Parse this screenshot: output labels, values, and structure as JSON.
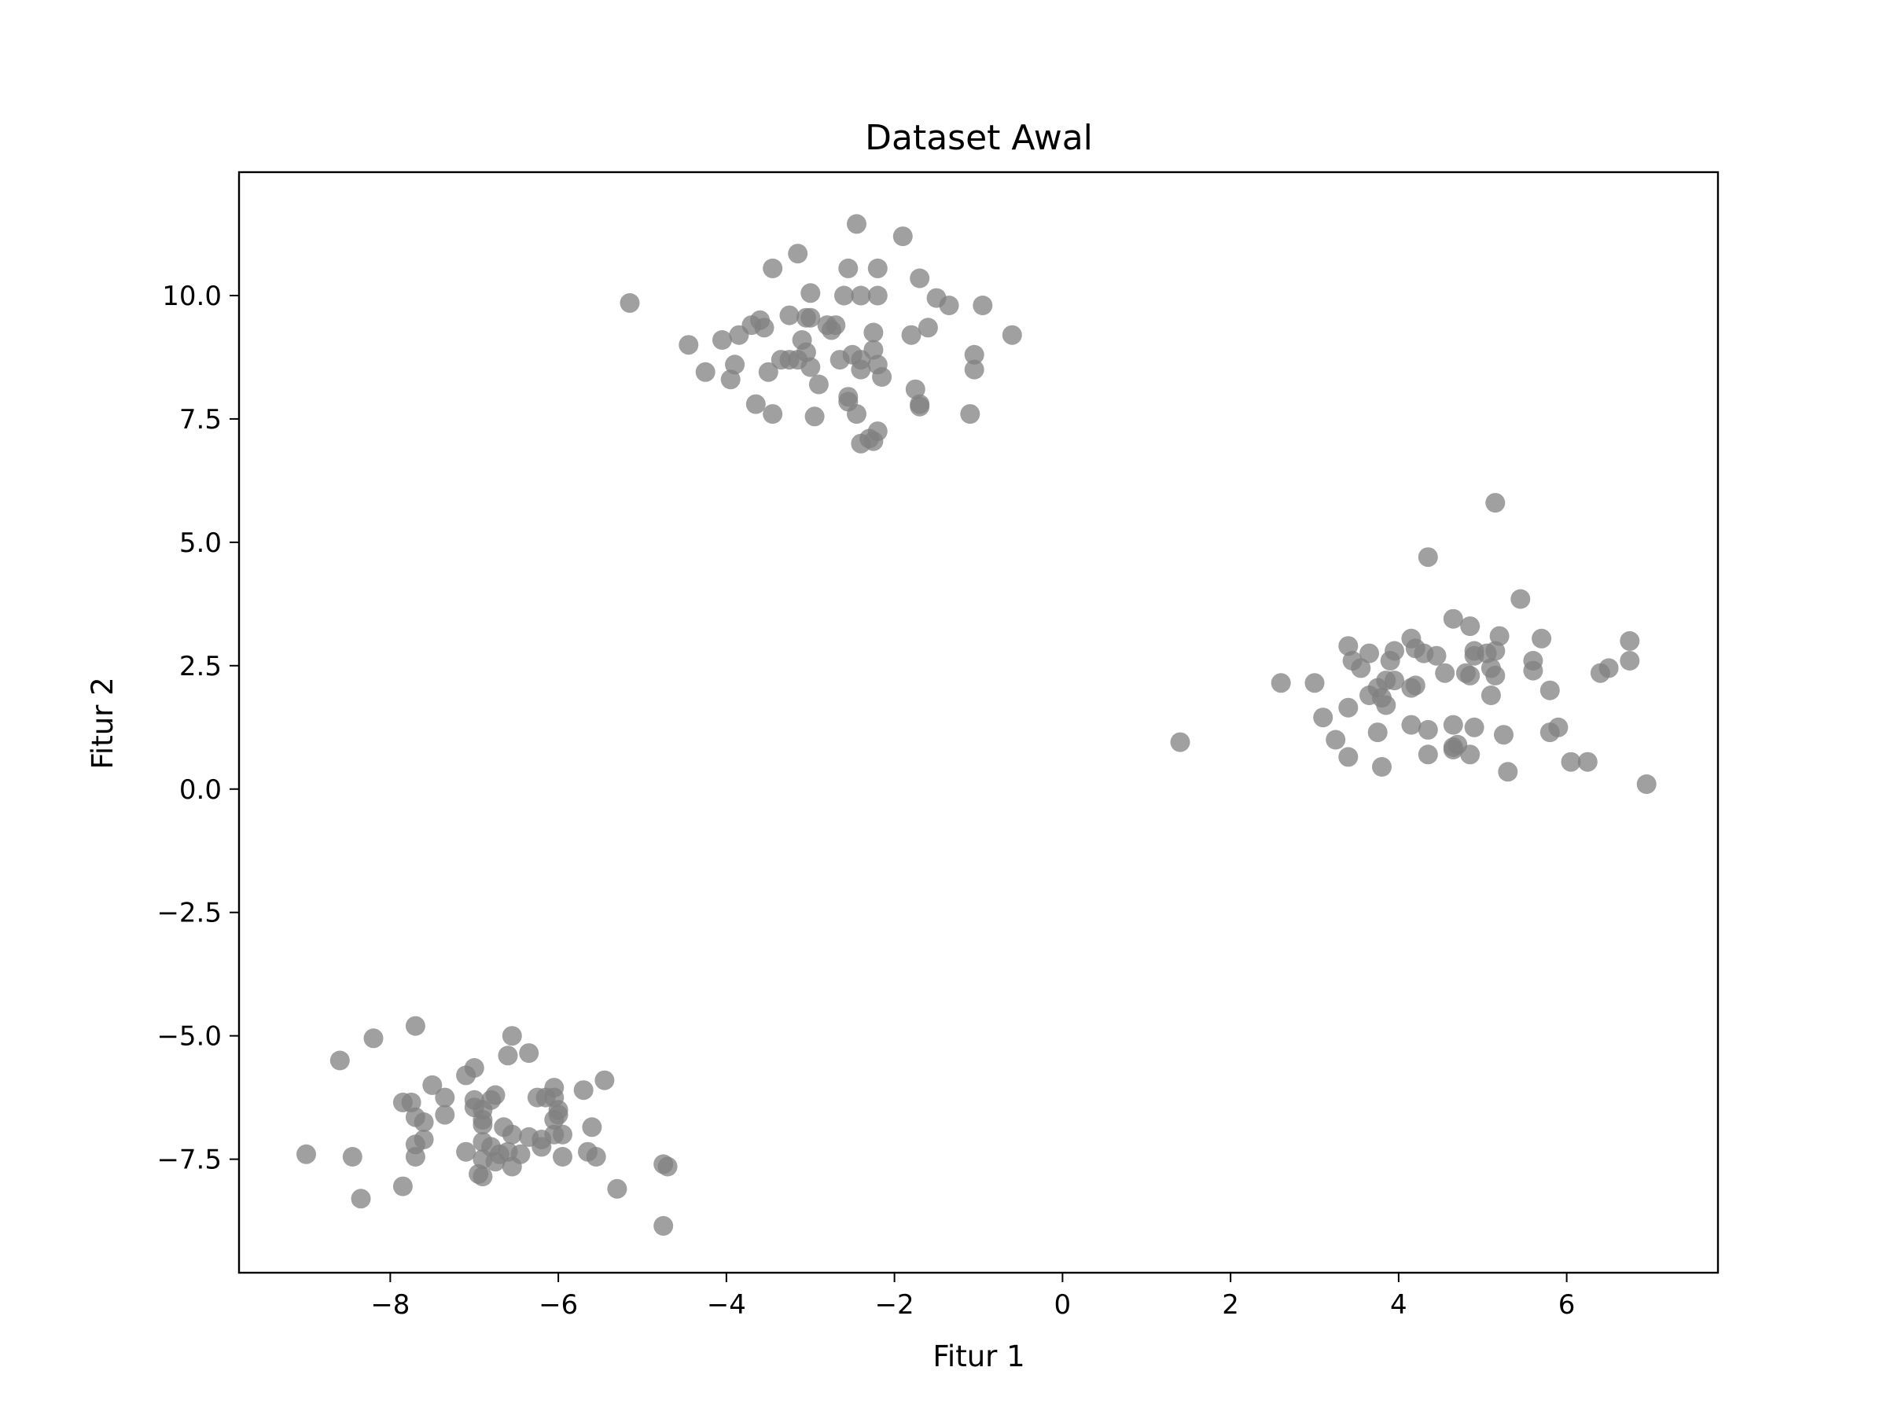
{
  "chart_data": {
    "type": "scatter",
    "title": "Dataset Awal",
    "xlabel": "Fitur 1",
    "ylabel": "Fitur 2",
    "xlim": [
      -9.8,
      7.8
    ],
    "ylim": [
      -9.8,
      12.5
    ],
    "xticks": [
      -8,
      -6,
      -4,
      -2,
      0,
      2,
      4,
      6
    ],
    "xtick_labels": [
      "−8",
      "−6",
      "−4",
      "−2",
      "0",
      "2",
      "4",
      "6"
    ],
    "yticks": [
      -7.5,
      -5.0,
      -2.5,
      0.0,
      2.5,
      5.0,
      7.5,
      10.0
    ],
    "ytick_labels": [
      "−7.5",
      "−5.0",
      "−2.5",
      "0.0",
      "2.5",
      "5.0",
      "7.5",
      "10.0"
    ],
    "grid": false,
    "legend": "none",
    "marker_color": "#808080",
    "marker_alpha": 0.75,
    "series": [
      {
        "points": [
          [
            -2.45,
            11.45
          ],
          [
            -1.9,
            11.2
          ],
          [
            -3.15,
            10.85
          ],
          [
            -3.45,
            10.55
          ],
          [
            -2.55,
            10.55
          ],
          [
            -2.2,
            10.55
          ],
          [
            -1.7,
            10.35
          ],
          [
            -3.0,
            10.05
          ],
          [
            -2.6,
            10.0
          ],
          [
            -2.4,
            10.0
          ],
          [
            -2.2,
            10.0
          ],
          [
            -1.5,
            9.95
          ],
          [
            -1.35,
            9.8
          ],
          [
            -0.95,
            9.8
          ],
          [
            -5.15,
            9.85
          ],
          [
            -3.25,
            9.6
          ],
          [
            -3.6,
            9.5
          ],
          [
            -3.7,
            9.4
          ],
          [
            -3.55,
            9.35
          ],
          [
            -3.05,
            9.55
          ],
          [
            -3.0,
            9.55
          ],
          [
            -2.8,
            9.4
          ],
          [
            -2.75,
            9.3
          ],
          [
            -2.7,
            9.4
          ],
          [
            -2.25,
            9.25
          ],
          [
            -1.8,
            9.2
          ],
          [
            -1.6,
            9.35
          ],
          [
            -0.6,
            9.2
          ],
          [
            -3.85,
            9.2
          ],
          [
            -4.05,
            9.1
          ],
          [
            -4.45,
            9.0
          ],
          [
            -3.1,
            9.1
          ],
          [
            -2.25,
            8.9
          ],
          [
            -3.05,
            8.85
          ],
          [
            -2.5,
            8.8
          ],
          [
            -2.4,
            8.7
          ],
          [
            -2.65,
            8.7
          ],
          [
            -1.05,
            8.8
          ],
          [
            -3.35,
            8.7
          ],
          [
            -3.25,
            8.7
          ],
          [
            -3.15,
            8.7
          ],
          [
            -3.0,
            8.55
          ],
          [
            -3.9,
            8.6
          ],
          [
            -3.5,
            8.45
          ],
          [
            -4.25,
            8.45
          ],
          [
            -3.95,
            8.3
          ],
          [
            -2.4,
            8.5
          ],
          [
            -2.2,
            8.6
          ],
          [
            -2.15,
            8.35
          ],
          [
            -1.05,
            8.5
          ],
          [
            -2.9,
            8.2
          ],
          [
            -1.75,
            8.1
          ],
          [
            -2.55,
            7.95
          ],
          [
            -2.55,
            7.85
          ],
          [
            -3.65,
            7.8
          ],
          [
            -1.7,
            7.8
          ],
          [
            -1.7,
            7.75
          ],
          [
            -3.45,
            7.6
          ],
          [
            -2.95,
            7.55
          ],
          [
            -2.45,
            7.6
          ],
          [
            -1.1,
            7.6
          ],
          [
            -2.2,
            7.25
          ],
          [
            -2.3,
            7.1
          ],
          [
            -2.25,
            7.05
          ],
          [
            -2.4,
            7.0
          ],
          [
            5.15,
            5.8
          ],
          [
            4.35,
            4.7
          ],
          [
            5.45,
            3.85
          ],
          [
            4.65,
            3.45
          ],
          [
            4.85,
            3.3
          ],
          [
            5.2,
            3.1
          ],
          [
            4.15,
            3.05
          ],
          [
            5.7,
            3.05
          ],
          [
            6.75,
            3.0
          ],
          [
            3.4,
            2.9
          ],
          [
            3.95,
            2.8
          ],
          [
            4.2,
            2.85
          ],
          [
            4.3,
            2.75
          ],
          [
            4.45,
            2.7
          ],
          [
            3.65,
            2.75
          ],
          [
            4.9,
            2.7
          ],
          [
            5.05,
            2.75
          ],
          [
            5.15,
            2.8
          ],
          [
            4.9,
            2.8
          ],
          [
            3.45,
            2.6
          ],
          [
            3.9,
            2.6
          ],
          [
            5.6,
            2.6
          ],
          [
            6.75,
            2.6
          ],
          [
            3.55,
            2.45
          ],
          [
            4.55,
            2.35
          ],
          [
            4.85,
            2.3
          ],
          [
            4.8,
            2.35
          ],
          [
            5.1,
            2.45
          ],
          [
            5.6,
            2.4
          ],
          [
            6.4,
            2.35
          ],
          [
            6.5,
            2.45
          ],
          [
            2.6,
            2.15
          ],
          [
            3.0,
            2.15
          ],
          [
            3.85,
            2.2
          ],
          [
            3.95,
            2.2
          ],
          [
            4.15,
            2.05
          ],
          [
            4.2,
            2.1
          ],
          [
            5.15,
            2.3
          ],
          [
            3.75,
            2.05
          ],
          [
            3.65,
            1.9
          ],
          [
            3.8,
            1.85
          ],
          [
            3.85,
            1.7
          ],
          [
            5.1,
            1.9
          ],
          [
            5.8,
            2.0
          ],
          [
            3.4,
            1.65
          ],
          [
            3.1,
            1.45
          ],
          [
            4.15,
            1.3
          ],
          [
            4.35,
            1.2
          ],
          [
            4.65,
            1.3
          ],
          [
            4.9,
            1.25
          ],
          [
            5.25,
            1.1
          ],
          [
            5.8,
            1.15
          ],
          [
            5.9,
            1.25
          ],
          [
            3.75,
            1.15
          ],
          [
            3.25,
            1.0
          ],
          [
            4.65,
            0.85
          ],
          [
            4.7,
            0.9
          ],
          [
            4.65,
            0.8
          ],
          [
            4.35,
            0.7
          ],
          [
            4.85,
            0.7
          ],
          [
            1.4,
            0.95
          ],
          [
            3.4,
            0.65
          ],
          [
            3.8,
            0.45
          ],
          [
            5.3,
            0.35
          ],
          [
            6.05,
            0.55
          ],
          [
            6.25,
            0.55
          ],
          [
            6.95,
            0.1
          ],
          [
            -7.7,
            -4.8
          ],
          [
            -8.2,
            -5.05
          ],
          [
            -6.55,
            -5.0
          ],
          [
            -6.35,
            -5.35
          ],
          [
            -6.6,
            -5.4
          ],
          [
            -8.6,
            -5.5
          ],
          [
            -7.0,
            -5.65
          ],
          [
            -7.1,
            -5.8
          ],
          [
            -5.45,
            -5.9
          ],
          [
            -7.5,
            -6.0
          ],
          [
            -6.05,
            -6.05
          ],
          [
            -5.7,
            -6.1
          ],
          [
            -7.35,
            -6.25
          ],
          [
            -6.25,
            -6.25
          ],
          [
            -6.15,
            -6.25
          ],
          [
            -6.05,
            -6.25
          ],
          [
            -7.0,
            -6.3
          ],
          [
            -6.8,
            -6.3
          ],
          [
            -6.75,
            -6.2
          ],
          [
            -7.85,
            -6.35
          ],
          [
            -7.75,
            -6.35
          ],
          [
            -7.0,
            -6.45
          ],
          [
            -6.9,
            -6.5
          ],
          [
            -6.0,
            -6.5
          ],
          [
            -7.7,
            -6.65
          ],
          [
            -7.35,
            -6.6
          ],
          [
            -6.0,
            -6.6
          ],
          [
            -6.05,
            -6.7
          ],
          [
            -7.6,
            -6.75
          ],
          [
            -6.9,
            -6.8
          ],
          [
            -6.9,
            -6.7
          ],
          [
            -6.65,
            -6.85
          ],
          [
            -5.6,
            -6.85
          ],
          [
            -6.55,
            -7.0
          ],
          [
            -6.35,
            -7.05
          ],
          [
            -6.05,
            -7.0
          ],
          [
            -5.95,
            -7.0
          ],
          [
            -7.6,
            -7.1
          ],
          [
            -7.7,
            -7.2
          ],
          [
            -6.9,
            -7.15
          ],
          [
            -6.8,
            -7.25
          ],
          [
            -6.2,
            -7.1
          ],
          [
            -6.2,
            -7.25
          ],
          [
            -7.1,
            -7.35
          ],
          [
            -6.7,
            -7.4
          ],
          [
            -6.6,
            -7.35
          ],
          [
            -6.45,
            -7.4
          ],
          [
            -5.95,
            -7.45
          ],
          [
            -5.65,
            -7.35
          ],
          [
            -5.55,
            -7.45
          ],
          [
            -9.0,
            -7.4
          ],
          [
            -8.45,
            -7.45
          ],
          [
            -7.7,
            -7.45
          ],
          [
            -6.9,
            -7.5
          ],
          [
            -6.75,
            -7.55
          ],
          [
            -6.55,
            -7.65
          ],
          [
            -4.75,
            -7.6
          ],
          [
            -4.7,
            -7.65
          ],
          [
            -6.95,
            -7.8
          ],
          [
            -6.9,
            -7.85
          ],
          [
            -7.85,
            -8.05
          ],
          [
            -5.3,
            -8.1
          ],
          [
            -8.35,
            -8.3
          ],
          [
            -4.75,
            -8.85
          ]
        ]
      }
    ]
  }
}
